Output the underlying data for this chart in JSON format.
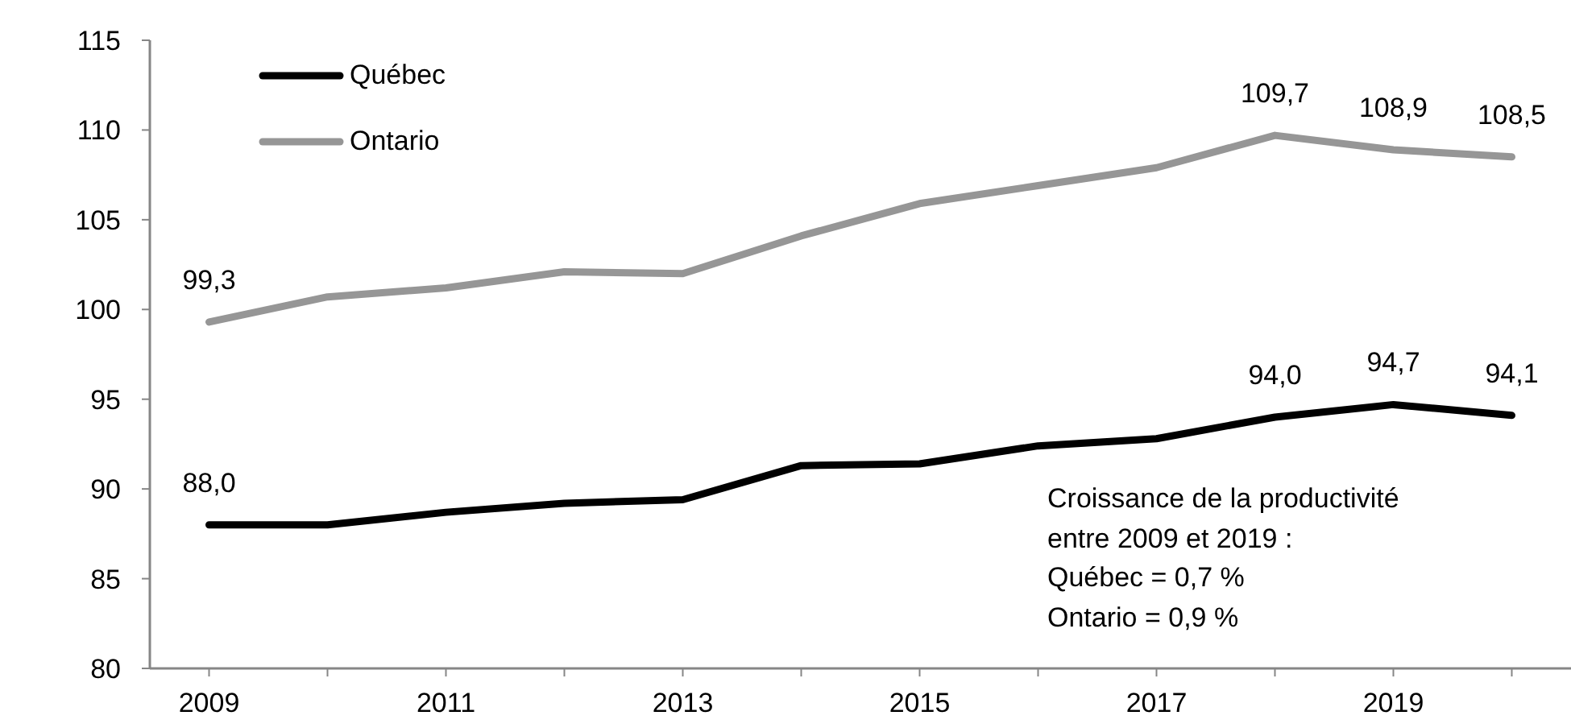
{
  "chart_data": {
    "type": "line",
    "categories": [
      "2009",
      null,
      "2011",
      null,
      "2013",
      null,
      "2015",
      null,
      "2017",
      null,
      "2019",
      null
    ],
    "series": [
      {
        "name": "Québec",
        "color": "#000000",
        "values": [
          88.0,
          88.0,
          88.7,
          89.2,
          89.4,
          91.3,
          91.4,
          92.4,
          92.8,
          94.0,
          94.7,
          94.1
        ],
        "value_labels": [
          "88,0",
          null,
          null,
          null,
          null,
          null,
          null,
          null,
          null,
          "94,0",
          "94,7",
          "94,1"
        ]
      },
      {
        "name": "Ontario",
        "color": "#969696",
        "values": [
          99.3,
          100.7,
          101.2,
          102.1,
          102.0,
          104.1,
          105.9,
          106.9,
          107.9,
          109.7,
          108.9,
          108.5
        ],
        "value_labels": [
          "99,3",
          null,
          null,
          null,
          null,
          null,
          null,
          null,
          null,
          "109,7",
          "108,9",
          "108,5"
        ]
      }
    ],
    "ylim": [
      80,
      115
    ],
    "yticks": [
      80,
      85,
      90,
      95,
      100,
      105,
      110,
      115
    ],
    "legend": "top left",
    "line_style": "solid",
    "annotations": [
      "Croissance de la productivité\nentre 2009 et 2019 :\nQuébec = 0,7 %\nOntario = 0,9 %"
    ]
  }
}
